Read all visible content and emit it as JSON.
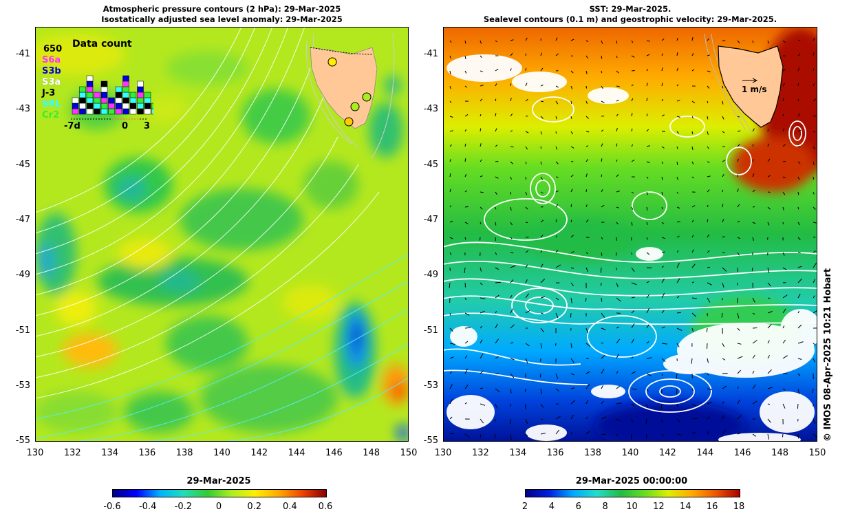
{
  "left_panel": {
    "title_line1": "Atmospheric pressure contours (2 hPa): 29-Mar-2025",
    "title_line2": "Isostatically adjusted sea level anomaly: 29-Mar-2025",
    "inset": {
      "heading": "Data count",
      "max_count": "650",
      "sensors": [
        {
          "label": "S6a",
          "color": "#ff33ff"
        },
        {
          "label": "S3b",
          "color": "#0000dd"
        },
        {
          "label": "S3a",
          "color": "#ffffff"
        },
        {
          "label": "J-3",
          "color": "#000000"
        },
        {
          "label": "SRL",
          "color": "#33ffff"
        },
        {
          "label": "Cr2",
          "color": "#33ee33"
        }
      ],
      "axis_labels": [
        "-7d",
        "0",
        "3"
      ]
    },
    "colorbar": {
      "title": "29-Mar-2025",
      "ticks": [
        "-0.6",
        "-0.4",
        "-0.2",
        "0",
        "0.2",
        "0.4",
        "0.6"
      ]
    }
  },
  "right_panel": {
    "title_line1": "SST: 29-Mar-2025.",
    "title_line2": "Sealevel contours (0.1 m) and geostrophic velocity: 29-Mar-2025.",
    "scale_label": "1 m/s",
    "colorbar": {
      "title": "29-Mar-2025 00:00:00",
      "ticks": [
        "2",
        "4",
        "6",
        "8",
        "10",
        "12",
        "14",
        "16",
        "18"
      ]
    }
  },
  "axes": {
    "lat_ticks": [
      "-41",
      "-43",
      "-45",
      "-47",
      "-49",
      "-51",
      "-53",
      "-55"
    ],
    "lon_ticks": [
      "130",
      "132",
      "134",
      "136",
      "138",
      "140",
      "142",
      "144",
      "146",
      "148",
      "150"
    ]
  },
  "credit": "© IMOS 08-Apr-2025 10:21 Hobart",
  "colors": {
    "land": "#ffc896",
    "anomaly_scale": [
      "#00008b",
      "#0000ff",
      "#00b4ff",
      "#22ddbb",
      "#33cc33",
      "#aaee22",
      "#ffee00",
      "#ffaa00",
      "#ee4400",
      "#880000"
    ],
    "sst_scale": [
      "#000088",
      "#0022dd",
      "#00aaff",
      "#22ddcc",
      "#22bb44",
      "#66dd22",
      "#ddee00",
      "#ffaa00",
      "#ee5500",
      "#aa0000"
    ]
  }
}
